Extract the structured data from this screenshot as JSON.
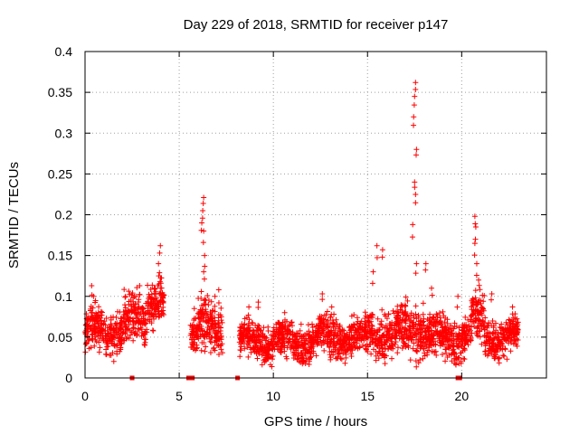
{
  "chart_data": {
    "type": "scatter",
    "title": "Day 229 of 2018, SRMTID for receiver p147",
    "xlabel": "GPS time / hours",
    "ylabel": "SRMTID / TECUs",
    "xlim": [
      0,
      24.5
    ],
    "ylim": [
      0,
      0.4
    ],
    "xticks": [
      0,
      5,
      10,
      15,
      20
    ],
    "xtick_labels": [
      "0",
      "5",
      "10",
      "15",
      "20"
    ],
    "yticks": [
      0,
      0.05,
      0.1,
      0.15,
      0.2,
      0.25,
      0.3,
      0.35,
      0.4
    ],
    "ytick_labels": [
      "0",
      "0.05",
      "0.1",
      "0.15",
      "0.2",
      "0.25",
      "0.3",
      "0.35",
      "0.4"
    ],
    "grid": true,
    "marker": "+",
    "color": "#ff0000",
    "series": [
      {
        "name": "SRMTID",
        "segments": [
          {
            "x_start": 0.0,
            "x_end": 2.0,
            "base": 0.058,
            "spread": 0.022,
            "peaks": [
              [
                0.35,
                0.113
              ],
              [
                0.45,
                0.1
              ]
            ]
          },
          {
            "x_start": 2.0,
            "x_end": 3.3,
            "base": 0.07,
            "spread": 0.025,
            "peaks": [
              [
                2.9,
                0.113
              ],
              [
                2.7,
                0.1
              ]
            ]
          },
          {
            "x_start": 3.3,
            "x_end": 4.2,
            "base": 0.1,
            "spread": 0.025,
            "peaks": [
              [
                4.0,
                0.162
              ],
              [
                3.9,
                0.14
              ]
            ]
          },
          {
            "x_start": 5.6,
            "x_end": 6.0,
            "base": 0.055,
            "spread": 0.02,
            "peaks": [
              [
                5.8,
                0.085
              ]
            ]
          },
          {
            "x_start": 6.0,
            "x_end": 6.5,
            "base": 0.06,
            "spread": 0.03,
            "peaks": [
              [
                6.3,
                0.221
              ],
              [
                6.25,
                0.205
              ],
              [
                6.2,
                0.19
              ],
              [
                6.3,
                0.18
              ],
              [
                6.35,
                0.15
              ],
              [
                6.3,
                0.13
              ]
            ]
          },
          {
            "x_start": 6.5,
            "x_end": 7.3,
            "base": 0.055,
            "spread": 0.025,
            "peaks": [
              [
                7.1,
                0.108
              ],
              [
                6.9,
                0.1
              ]
            ]
          },
          {
            "x_start": 8.2,
            "x_end": 12.0,
            "base": 0.045,
            "spread": 0.02,
            "peaks": [
              [
                8.7,
                0.087
              ],
              [
                9.2,
                0.093
              ],
              [
                10.6,
                0.08
              ]
            ]
          },
          {
            "x_start": 12.0,
            "x_end": 15.0,
            "base": 0.05,
            "spread": 0.02,
            "peaks": [
              [
                12.6,
                0.103
              ],
              [
                13.1,
                0.087
              ]
            ]
          },
          {
            "x_start": 15.0,
            "x_end": 17.0,
            "base": 0.055,
            "spread": 0.025,
            "peaks": [
              [
                15.5,
                0.162
              ],
              [
                15.8,
                0.157
              ],
              [
                15.3,
                0.13
              ]
            ]
          },
          {
            "x_start": 17.0,
            "x_end": 18.0,
            "base": 0.06,
            "spread": 0.03,
            "peaks": [
              [
                17.55,
                0.362
              ],
              [
                17.5,
                0.345
              ],
              [
                17.45,
                0.32
              ],
              [
                17.6,
                0.28
              ],
              [
                17.5,
                0.24
              ],
              [
                17.55,
                0.225
              ],
              [
                17.4,
                0.188
              ],
              [
                17.6,
                0.14
              ]
            ]
          },
          {
            "x_start": 18.0,
            "x_end": 20.5,
            "base": 0.05,
            "spread": 0.022,
            "peaks": [
              [
                18.1,
                0.14
              ],
              [
                18.4,
                0.11
              ],
              [
                19.8,
                0.1
              ]
            ]
          },
          {
            "x_start": 20.5,
            "x_end": 21.2,
            "base": 0.07,
            "spread": 0.03,
            "peaks": [
              [
                20.7,
                0.198
              ],
              [
                20.75,
                0.185
              ],
              [
                20.7,
                0.165
              ],
              [
                20.8,
                0.14
              ],
              [
                20.9,
                0.12
              ]
            ]
          },
          {
            "x_start": 21.2,
            "x_end": 23.0,
            "base": 0.05,
            "spread": 0.02,
            "peaks": [
              [
                21.6,
                0.103
              ],
              [
                22.7,
                0.087
              ]
            ]
          }
        ],
        "zero_points": [
          2.5,
          5.5,
          5.6,
          5.7,
          8.1,
          19.8,
          19.9
        ]
      }
    ]
  }
}
